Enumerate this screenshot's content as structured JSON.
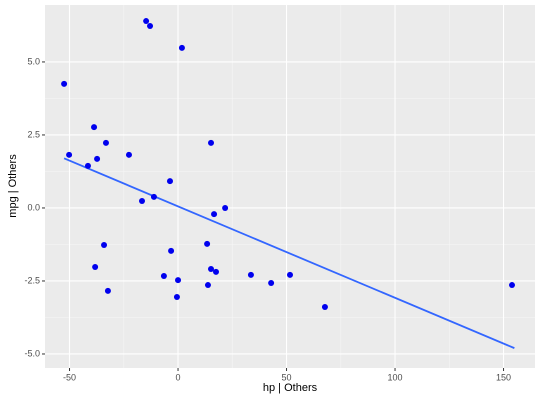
{
  "chart_data": {
    "type": "scatter",
    "x_label": "hp  | Others",
    "y_label": "mpg  | Others",
    "x": [
      -52.5,
      -14.7,
      -12.9,
      1.8,
      -50.2,
      -38.7,
      -33.2,
      -37.3,
      -41.5,
      -22.6,
      15.2,
      -3.7,
      -11.1,
      -16.6,
      16.6,
      21.7,
      -34.1,
      13.4,
      -3.2,
      -38.2,
      15.2,
      17.5,
      -6.5,
      0,
      33.6,
      51.6,
      42.9,
      13.8,
      -32.3,
      -0.5,
      67.7,
      153.9
    ],
    "y": [
      4.25,
      6.4,
      6.23,
      5.48,
      1.82,
      2.77,
      2.23,
      1.68,
      1.44,
      1.82,
      2.23,
      0.92,
      0.38,
      0.24,
      -0.21,
      0.0,
      -1.27,
      -1.23,
      -1.47,
      -2.02,
      -2.09,
      -2.19,
      -2.33,
      -2.47,
      -2.29,
      -2.29,
      -2.57,
      -2.64,
      -2.84,
      -3.05,
      -3.39,
      -2.64
    ],
    "color": "#0000ee",
    "trend": {
      "x": [
        -52.5,
        155
      ],
      "y": [
        1.7,
        -4.8
      ],
      "color": "#3366ff"
    },
    "xlim": [
      -61.3,
      164.5
    ],
    "ylim": [
      -5.48,
      6.95
    ],
    "xticks": [
      -50,
      0,
      50,
      100,
      150
    ],
    "yticks": [
      {
        "value": 5,
        "label": "5.0"
      },
      {
        "value": 2.5,
        "label": "2.5"
      },
      {
        "value": 0,
        "label": "0.0"
      },
      {
        "value": -2.5,
        "label": "-2.5"
      },
      {
        "value": -5,
        "label": "-5.0"
      }
    ],
    "grid": true
  }
}
